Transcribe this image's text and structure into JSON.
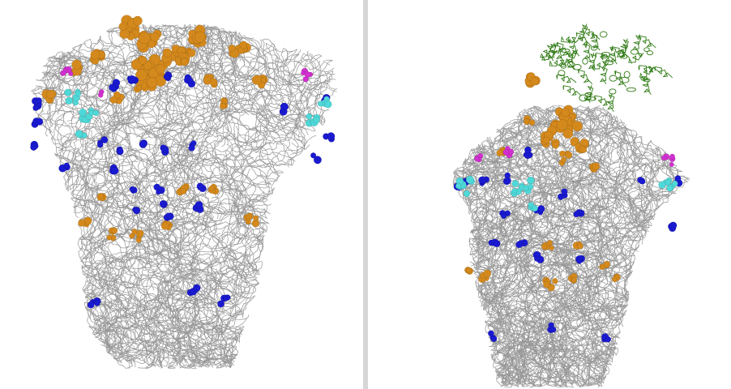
{
  "figure": {
    "panels": [
      {
        "id": "left",
        "content": "protein-structure-trimer"
      },
      {
        "id": "right",
        "content": "protein-structure-trimer-with-bound-domain"
      }
    ],
    "colors": {
      "backbone": "#8c8c8c",
      "orange_residues": "#d4891c",
      "blue_residues": "#1a1ad0",
      "cyan_residues": "#4fd8d8",
      "magenta_residues": "#d22fd0",
      "green_ribbon": "#2f7a14",
      "divider": "#d6d6d6"
    }
  }
}
